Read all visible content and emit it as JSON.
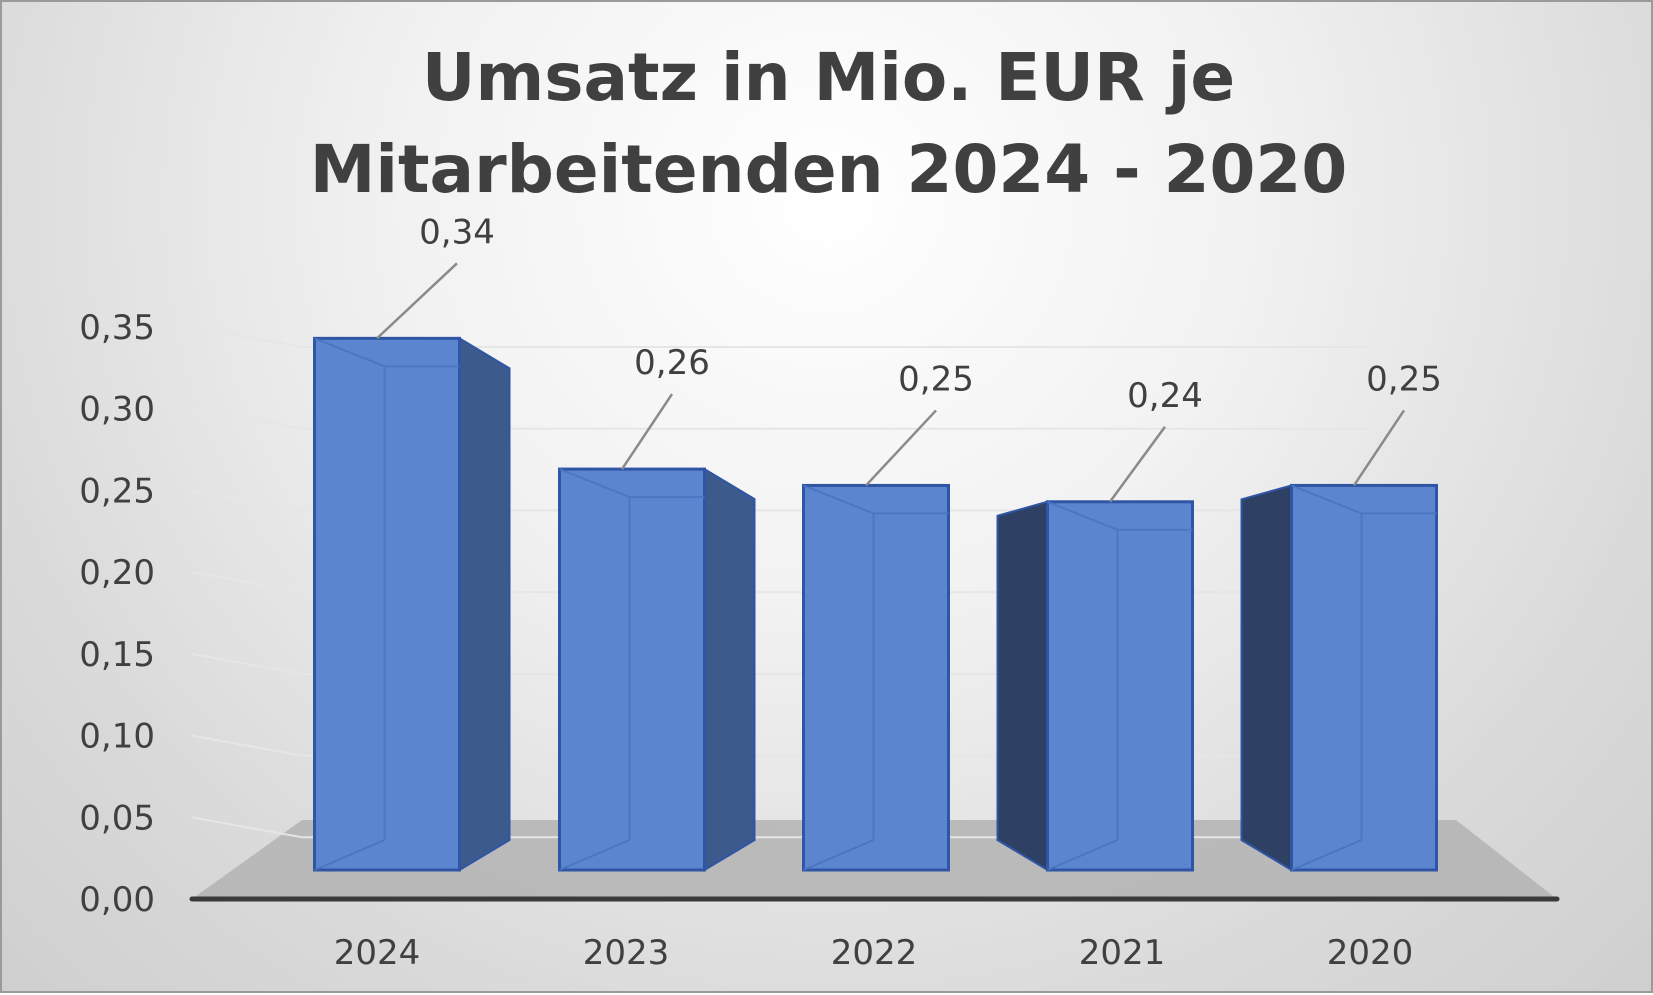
{
  "chart_data": {
    "type": "bar",
    "title_lines": [
      "Umsatz in Mio. EUR je",
      "Mitarbeitenden 2024 - 2020"
    ],
    "categories": [
      "2024",
      "2023",
      "2022",
      "2021",
      "2020"
    ],
    "values": [
      0.34,
      0.26,
      0.25,
      0.24,
      0.25
    ],
    "data_labels": [
      "0,34",
      "0,26",
      "0,25",
      "0,24",
      "0,25"
    ],
    "y_ticks": [
      "0,00",
      "0,05",
      "0,10",
      "0,15",
      "0,20",
      "0,25",
      "0,30",
      "0,35"
    ],
    "ylim": [
      0,
      0.35
    ],
    "xlabel": "",
    "ylabel": "",
    "grid": true,
    "legend": "none",
    "style": "3d-column",
    "colors": {
      "bar_front": "#5b86cf",
      "bar_side": "#3d5a8c",
      "bar_outline": "#2f55a4",
      "floor": "#b3b3b3",
      "axis": "#3a3a3a",
      "text": "#404040"
    }
  }
}
